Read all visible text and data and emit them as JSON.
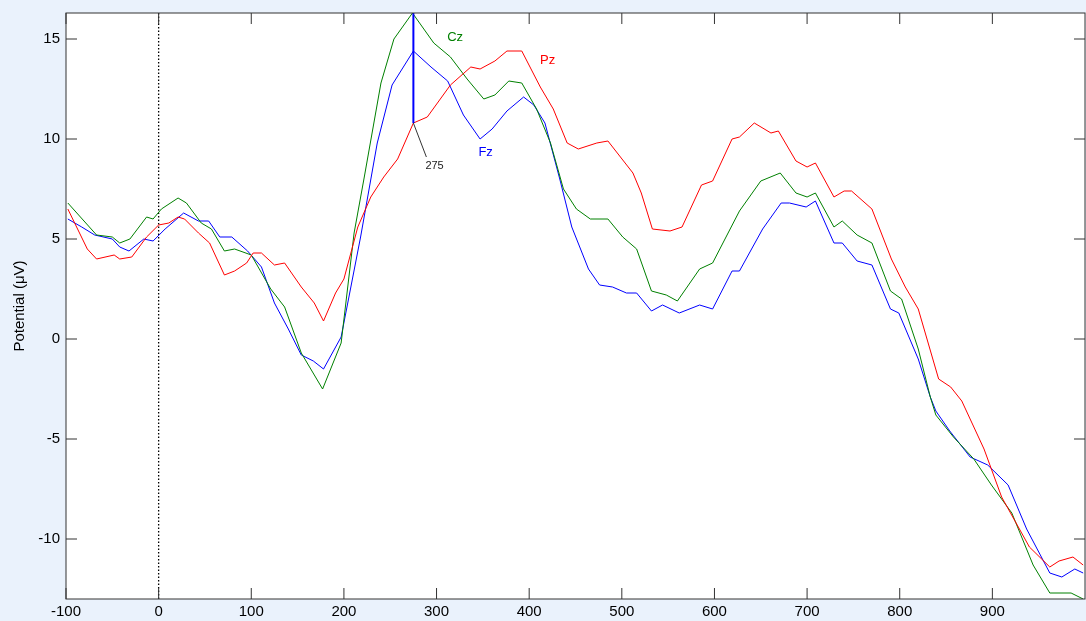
{
  "chart_data": {
    "type": "line",
    "ylabel": "Potential (μV)",
    "xlim": [
      -100,
      1000
    ],
    "ylim": [
      -13,
      16.3
    ],
    "xticks": [
      -100,
      0,
      100,
      200,
      300,
      400,
      500,
      600,
      700,
      800,
      900
    ],
    "yticks": [
      -10,
      -5,
      0,
      5,
      10,
      15
    ],
    "grid": false,
    "marker": "none",
    "line_style": "solid",
    "ref_lines": [
      {
        "axis": "x",
        "value": 0,
        "color": "#000000",
        "line_style": "dotted"
      }
    ],
    "annotations": [
      {
        "text": "275",
        "x": 275,
        "y": 10.8
      }
    ],
    "series": [
      {
        "name": "Fz",
        "color": "#0000ff",
        "x": [
          -98,
          -83,
          -69,
          -50,
          -42,
          -32,
          -16,
          -6,
          7,
          27,
          43,
          54,
          66,
          79,
          96,
          111,
          125,
          140,
          154,
          167,
          178,
          197,
          218,
          236,
          252,
          275,
          294,
          312,
          329,
          347,
          360,
          376,
          394,
          405,
          417,
          433,
          446,
          464,
          476,
          490,
          505,
          516,
          532,
          544,
          562,
          584,
          598,
          619,
          627,
          652,
          672,
          681,
          699,
          709,
          729,
          738,
          754,
          770,
          790,
          799,
          820,
          833,
          839,
          854,
          876,
          895,
          917,
          937,
          962,
          975,
          989,
          998
        ],
        "values": [
          6.0,
          5.6,
          5.2,
          5.0,
          4.6,
          4.4,
          5.0,
          4.9,
          5.5,
          6.3,
          5.9,
          5.9,
          5.1,
          5.1,
          4.4,
          3.6,
          1.8,
          0.5,
          -0.8,
          -1.1,
          -1.5,
          0.1,
          5.1,
          9.8,
          12.7,
          14.4,
          13.6,
          12.9,
          11.2,
          10.0,
          10.5,
          11.4,
          12.1,
          11.7,
          10.8,
          8.0,
          5.6,
          3.5,
          2.7,
          2.6,
          2.3,
          2.3,
          1.4,
          1.7,
          1.3,
          1.7,
          1.5,
          3.4,
          3.4,
          5.5,
          6.8,
          6.8,
          6.6,
          6.9,
          4.8,
          4.8,
          3.9,
          3.7,
          1.5,
          1.3,
          -1.0,
          -2.9,
          -3.6,
          -4.6,
          -5.9,
          -6.3,
          -7.3,
          -9.5,
          -11.7,
          -11.9,
          -11.5,
          -11.7
        ]
      },
      {
        "name": "Cz",
        "color": "#008000",
        "x": [
          -98,
          -67,
          -50,
          -42,
          -31,
          -13,
          -6,
          3,
          21,
          30,
          46,
          57,
          71,
          82,
          100,
          121,
          136,
          154,
          177,
          197,
          211,
          222,
          240,
          254,
          274,
          297,
          315,
          333,
          351,
          363,
          378,
          392,
          408,
          423,
          437,
          451,
          466,
          485,
          501,
          516,
          532,
          548,
          560,
          584,
          598,
          627,
          650,
          671,
          688,
          700,
          709,
          729,
          738,
          754,
          770,
          790,
          802,
          820,
          833,
          839,
          858,
          880,
          899,
          921,
          944,
          962,
          985,
          998
        ],
        "values": [
          6.8,
          5.2,
          5.1,
          4.8,
          5.0,
          6.1,
          6.0,
          6.5,
          7.05,
          6.8,
          5.8,
          5.5,
          4.4,
          4.5,
          4.2,
          2.5,
          1.6,
          -0.7,
          -2.5,
          -0.2,
          5.3,
          8.1,
          12.8,
          15.0,
          16.3,
          14.8,
          14.1,
          13.0,
          12.0,
          12.2,
          12.9,
          12.8,
          11.5,
          9.8,
          7.5,
          6.5,
          6.0,
          6.0,
          5.1,
          4.5,
          2.4,
          2.2,
          1.9,
          3.5,
          3.8,
          6.4,
          7.9,
          8.3,
          7.3,
          7.1,
          7.3,
          5.6,
          5.9,
          5.2,
          4.8,
          2.4,
          2.0,
          -0.5,
          -2.9,
          -3.8,
          -4.9,
          -6.0,
          -7.3,
          -8.7,
          -11.3,
          -12.7,
          -12.7,
          -13.0
        ]
      },
      {
        "name": "Pz",
        "color": "#ff0000",
        "x": [
          -98,
          -77,
          -67,
          -48,
          -42,
          -29,
          -13,
          0,
          11,
          21,
          28,
          43,
          55,
          71,
          82,
          95,
          102,
          111,
          125,
          136,
          154,
          168,
          178,
          191,
          200,
          215,
          229,
          243,
          258,
          275,
          290,
          315,
          337,
          347,
          363,
          376,
          392,
          412,
          426,
          441,
          453,
          473,
          485,
          512,
          521,
          533,
          552,
          565,
          586,
          598,
          619,
          627,
          643,
          661,
          669,
          688,
          700,
          709,
          729,
          740,
          748,
          770,
          791,
          806,
          820,
          842,
          855,
          867,
          891,
          910,
          940,
          962,
          972,
          987,
          998
        ],
        "values": [
          6.5,
          4.5,
          4.0,
          4.2,
          4.0,
          4.1,
          5.1,
          5.7,
          5.8,
          6.1,
          6.0,
          5.3,
          4.8,
          3.2,
          3.4,
          3.8,
          4.3,
          4.3,
          3.7,
          3.8,
          2.6,
          1.8,
          0.9,
          2.3,
          3.0,
          5.6,
          7.1,
          8.1,
          9.0,
          10.8,
          11.1,
          12.7,
          13.6,
          13.5,
          13.9,
          14.4,
          14.4,
          12.6,
          11.5,
          9.8,
          9.5,
          9.8,
          9.9,
          8.3,
          7.3,
          5.5,
          5.4,
          5.6,
          7.7,
          7.9,
          10.0,
          10.1,
          10.8,
          10.3,
          10.4,
          8.9,
          8.6,
          8.8,
          7.1,
          7.4,
          7.4,
          6.5,
          4.0,
          2.6,
          1.5,
          -2.0,
          -2.4,
          -3.1,
          -5.5,
          -7.9,
          -10.4,
          -11.4,
          -11.1,
          -10.9,
          -11.3
        ]
      },
      {
        "color": "#0000ff",
        "x": [
          275,
          275
        ],
        "values": [
          10.8,
          16.3
        ]
      }
    ]
  }
}
